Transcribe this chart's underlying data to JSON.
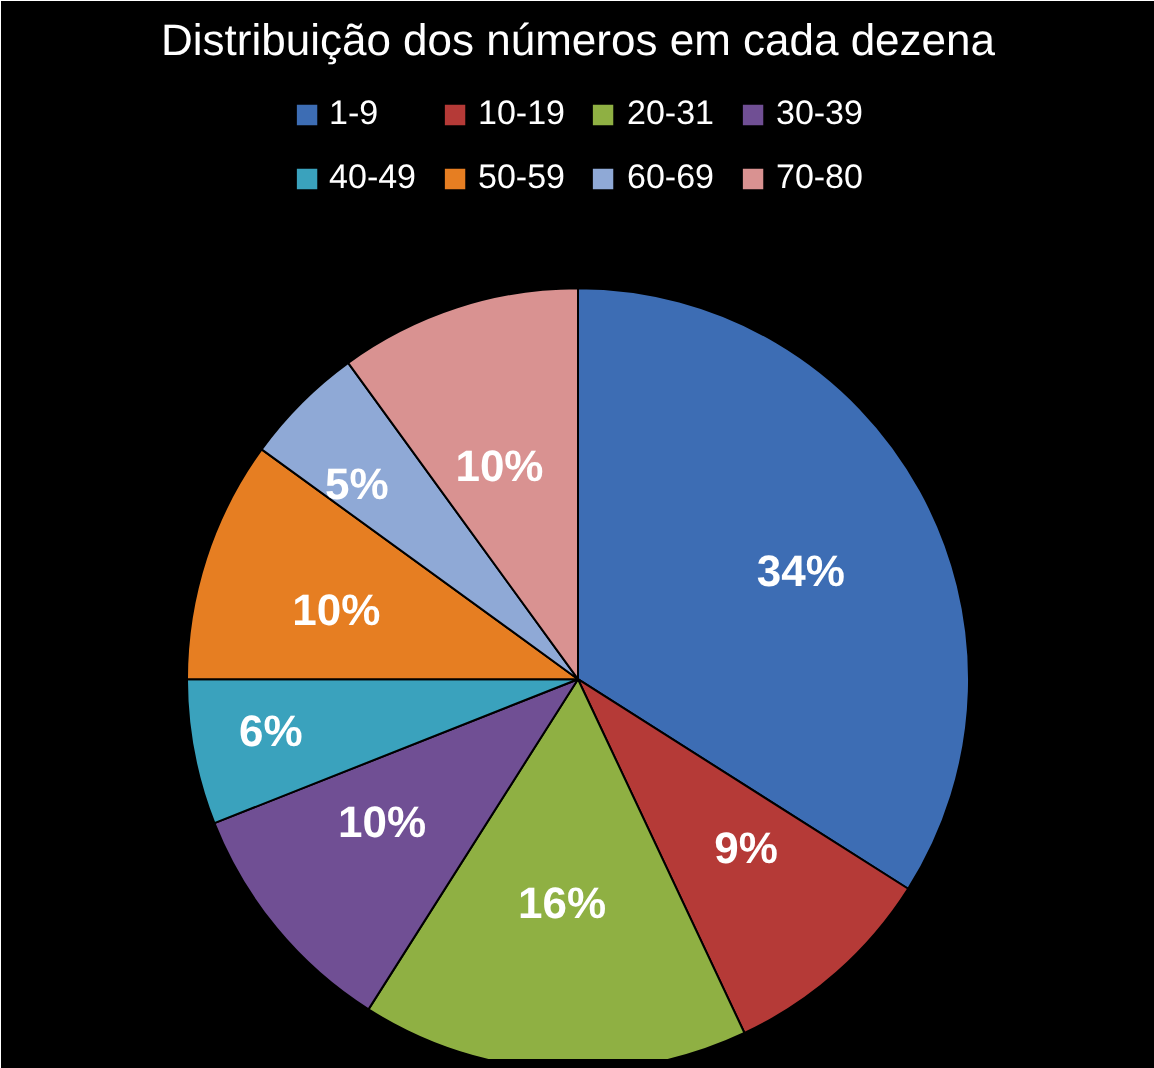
{
  "chart_data": {
    "type": "pie",
    "title": "Distribuição dos números em cada dezena",
    "categories": [
      "1-9",
      "10-19",
      "20-31",
      "30-39",
      "40-49",
      "50-59",
      "60-69",
      "70-80"
    ],
    "values": [
      34,
      9,
      16,
      10,
      6,
      10,
      5,
      10
    ],
    "colors": [
      "#3d6db4",
      "#b53a37",
      "#8fb043",
      "#704f94",
      "#3aa2bd",
      "#e67e22",
      "#8fa9d6",
      "#d99291"
    ],
    "value_labels": [
      "34%",
      "9%",
      "16%",
      "10%",
      "6%",
      "10%",
      "5%",
      "10%"
    ],
    "legend": "top"
  }
}
